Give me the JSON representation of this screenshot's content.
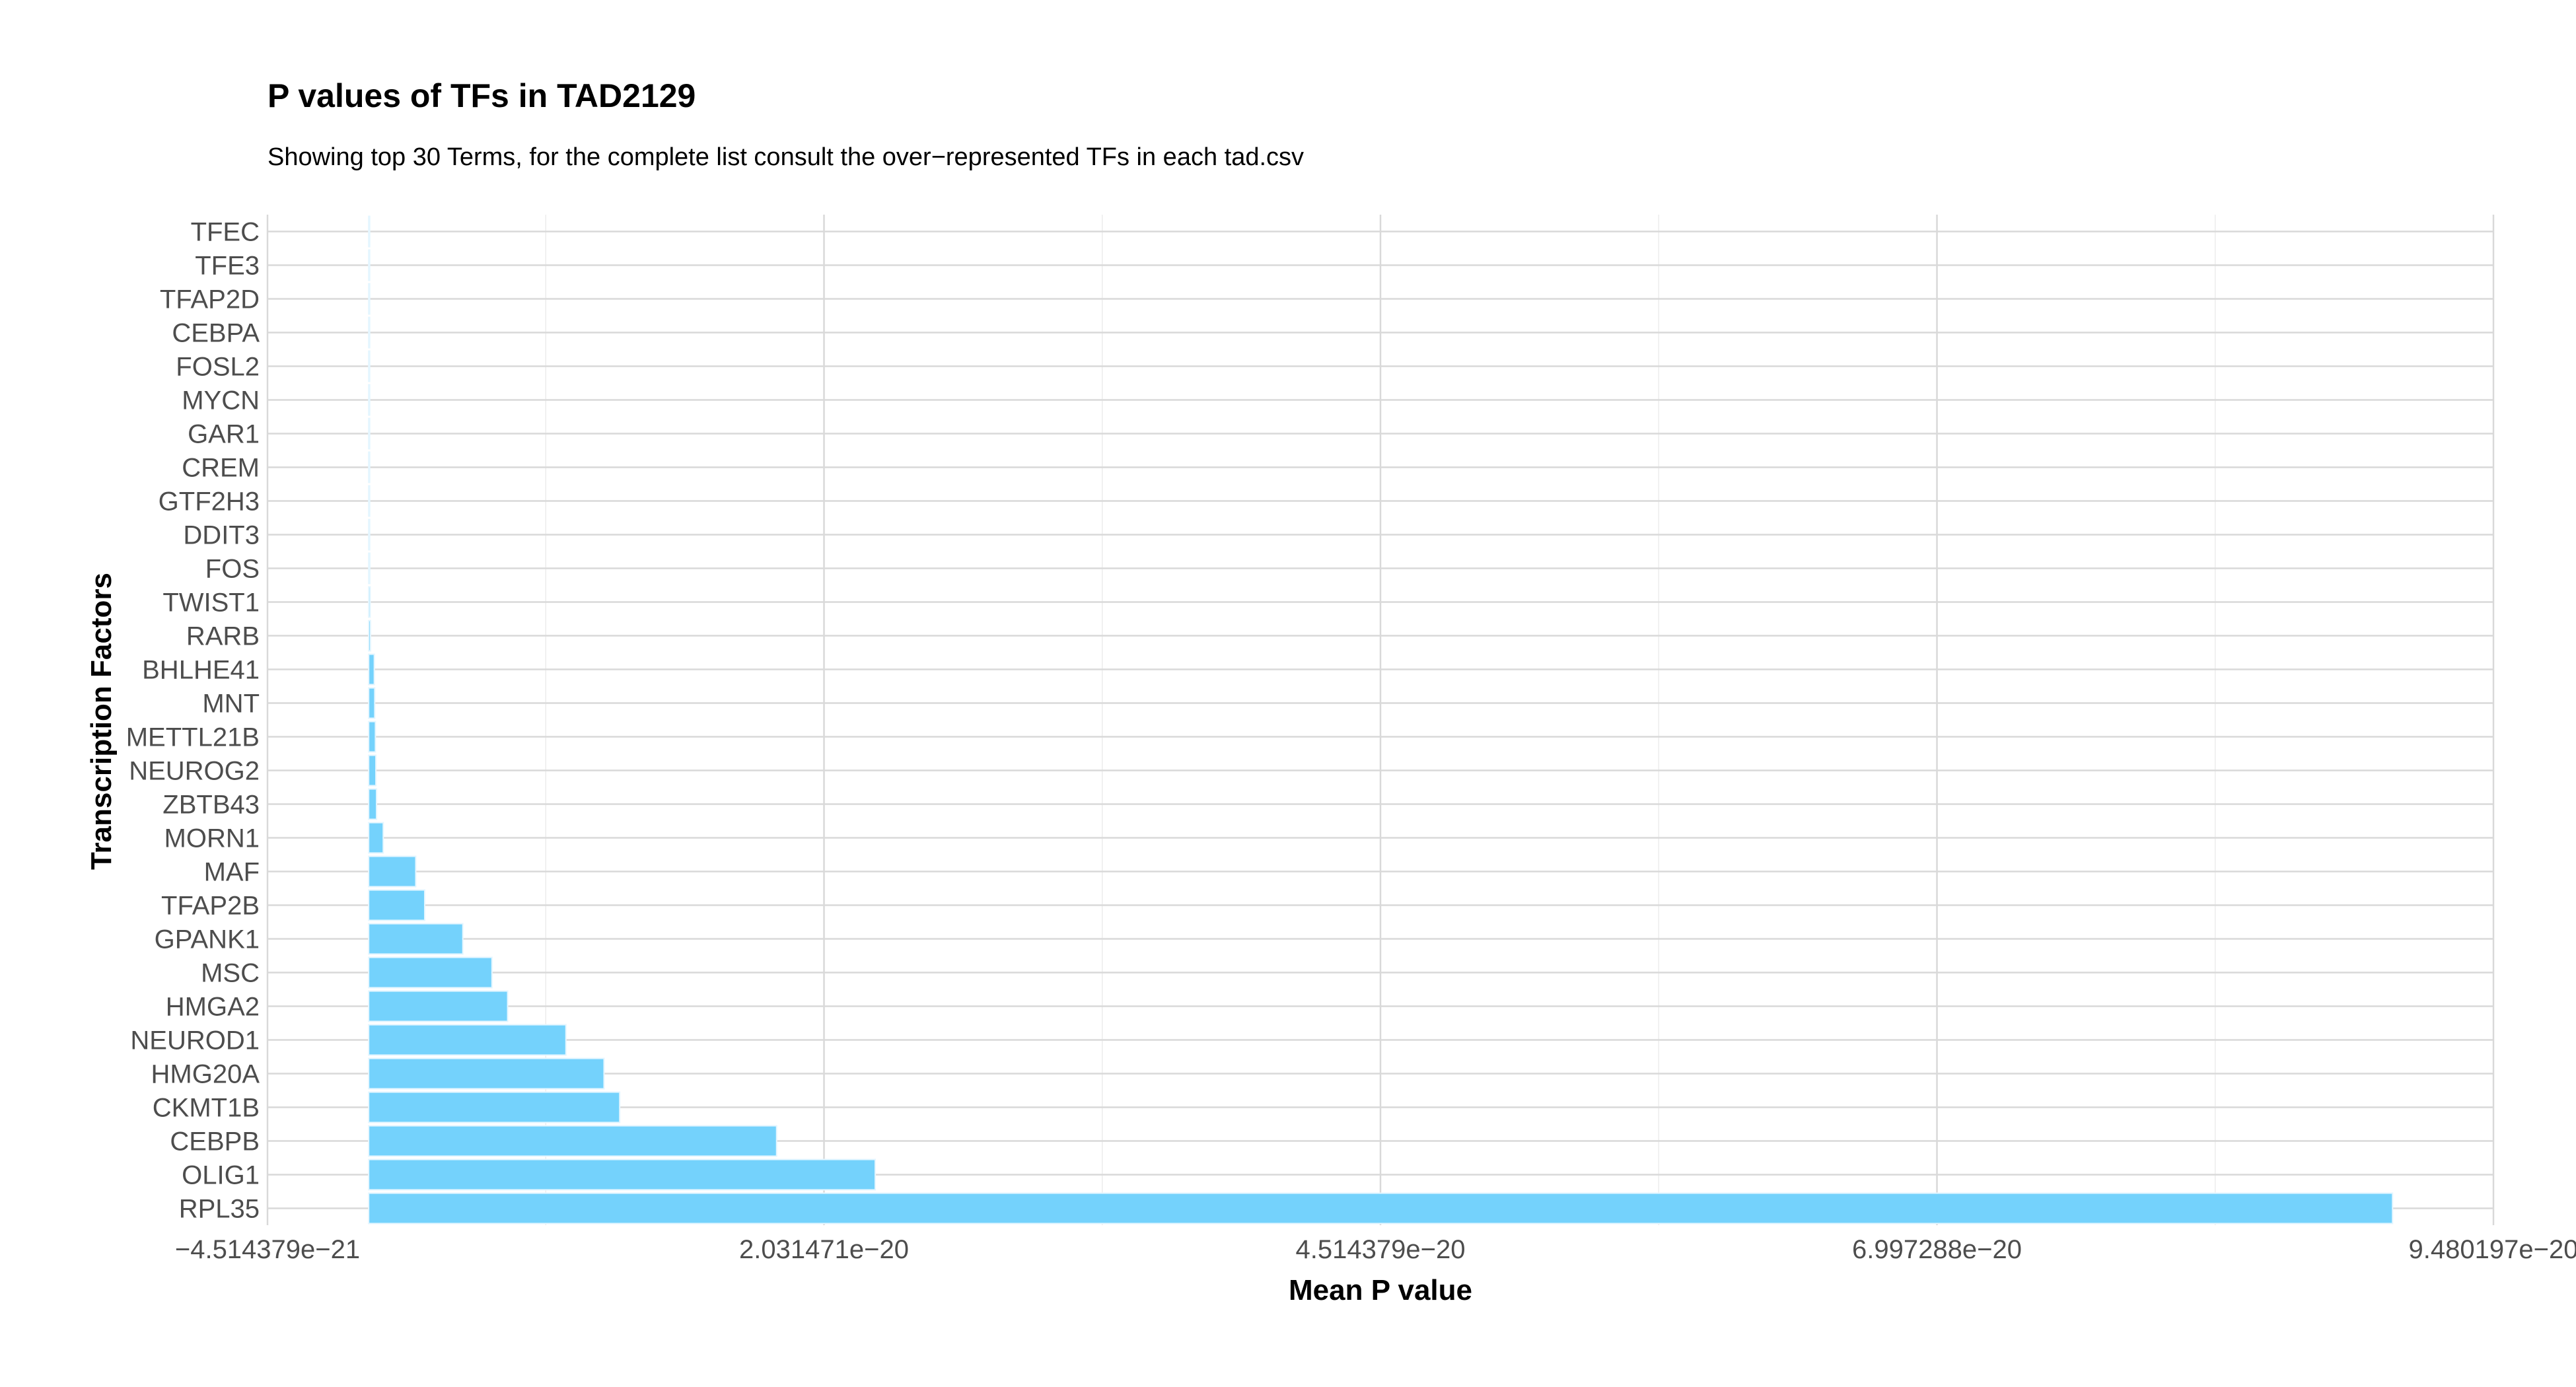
{
  "chart_data": {
    "type": "bar",
    "orientation": "horizontal",
    "title": "P values of TFs in TAD2129",
    "subtitle": "Showing top 30 Terms, for the complete list consult the over−represented TFs in each tad.csv",
    "xlabel": "Mean P value",
    "ylabel": "Transcription Factors",
    "bar_color": "#74d2fc",
    "grid": true,
    "xlim": [
      -4.514379e-21,
      9.480197e-20
    ],
    "x_ticks": [
      -4.514379e-21,
      2.031471e-20,
      4.514379e-20,
      6.997288e-20,
      9.480197e-20
    ],
    "x_tick_labels": [
      "−4.514379e−21",
      "2.031471e−20",
      "4.514379e−20",
      "6.997288e−20",
      "9.480197e−20"
    ],
    "categories": [
      "TFEC",
      "TFE3",
      "TFAP2D",
      "CEBPA",
      "FOSL2",
      "MYCN",
      "GAR1",
      "CREM",
      "GTF2H3",
      "DDIT3",
      "FOS",
      "TWIST1",
      "RARB",
      "BHLHE41",
      "MNT",
      "METTL21B",
      "NEUROG2",
      "ZBTB43",
      "MORN1",
      "MAF",
      "TFAP2B",
      "GPANK1",
      "MSC",
      "HMGA2",
      "NEUROD1",
      "HMG20A",
      "CKMT1B",
      "CEBPB",
      "OLIG1",
      "RPL35"
    ],
    "values": [
      1e-24,
      2e-24,
      3e-24,
      5e-24,
      8e-24,
      1.2e-23,
      1.6e-23,
      2.2e-23,
      3e-23,
      4e-23,
      5e-23,
      6.5e-23,
      8e-23,
      2.5e-22,
      2.7e-22,
      3e-22,
      3.2e-22,
      3.5e-22,
      6.5e-22,
      2.1e-21,
      2.5e-21,
      4.2e-21,
      5.5e-21,
      6.2e-21,
      8.8e-21,
      1.05e-20,
      1.12e-20,
      1.82e-20,
      2.26e-20,
      9.03e-20
    ]
  }
}
